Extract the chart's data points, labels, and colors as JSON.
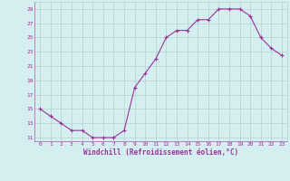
{
  "x": [
    0,
    1,
    2,
    3,
    4,
    5,
    6,
    7,
    8,
    9,
    10,
    11,
    12,
    13,
    14,
    15,
    16,
    17,
    18,
    19,
    20,
    21,
    22,
    23
  ],
  "y": [
    15,
    14,
    13,
    12,
    12,
    11,
    11,
    11,
    12,
    18,
    20,
    22,
    25,
    26,
    26,
    27.5,
    27.5,
    29,
    29,
    29,
    28,
    25,
    23.5,
    22.5
  ],
  "line_color": "#993399",
  "marker": "+",
  "marker_size": 3,
  "marker_linewidth": 0.8,
  "line_width": 0.8,
  "bg_color": "#d5eef0",
  "grid_color": "#aacccc",
  "xlabel": "Windchill (Refroidissement éolien,°C)",
  "ylabel": "",
  "yticks": [
    11,
    13,
    15,
    17,
    19,
    21,
    23,
    25,
    27,
    29
  ],
  "xticks": [
    0,
    1,
    2,
    3,
    4,
    5,
    6,
    7,
    8,
    9,
    10,
    11,
    12,
    13,
    14,
    15,
    16,
    17,
    18,
    19,
    20,
    21,
    22,
    23
  ],
  "ylim": [
    10.5,
    30
  ],
  "xlim": [
    -0.5,
    23.5
  ],
  "xlabel_color": "#993399",
  "tick_color": "#993399",
  "tick_fontsize": 4.5,
  "xlabel_fontsize": 5.5
}
